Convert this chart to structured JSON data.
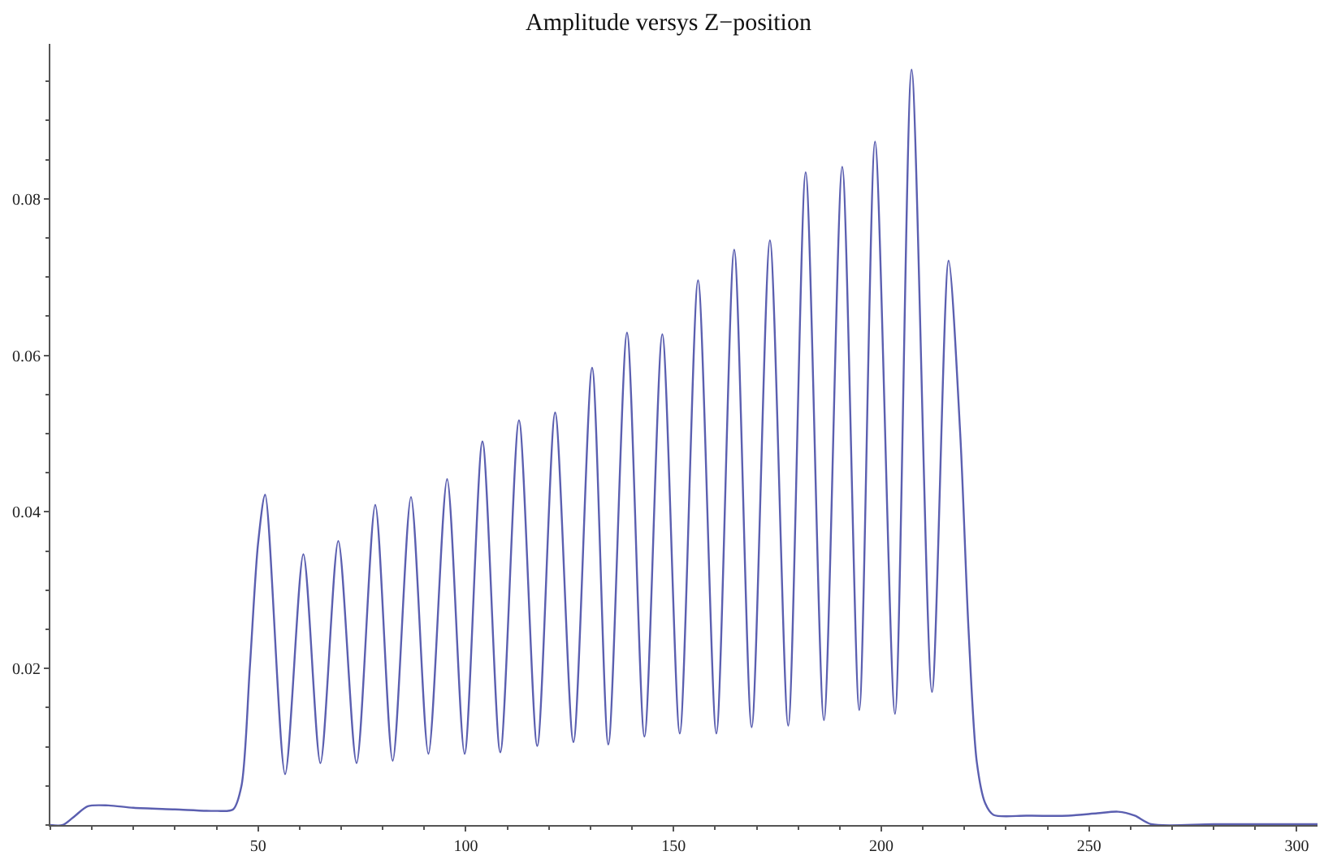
{
  "chart_data": {
    "type": "line",
    "title": "Amplitude versys Z−position",
    "x": [
      0,
      3,
      6,
      9,
      14,
      20,
      30,
      40,
      44,
      46,
      48,
      50,
      51.7,
      56.5,
      60.9,
      65,
      69.3,
      73.7,
      78.2,
      82.4,
      86.8,
      91,
      95.5,
      99.7,
      104,
      108.3,
      112.8,
      117.2,
      121.5,
      125.9,
      130.4,
      134.3,
      138.8,
      143,
      147.3,
      151.5,
      155.9,
      160.3,
      164.6,
      168.8,
      173.2,
      177.6,
      181.8,
      186.2,
      190.6,
      194.7,
      198.5,
      203.3,
      207.3,
      212.2,
      216.2,
      219,
      221,
      223,
      225,
      227,
      235,
      245,
      252,
      257,
      261,
      265,
      280,
      305
    ],
    "series": [
      {
        "color": "#5b5fb0",
        "values": [
          0,
          0,
          0.0012,
          0.0024,
          0.0025,
          0.0022,
          0.002,
          0.0018,
          0.002,
          0.005,
          0.02,
          0.036,
          0.0422,
          0.0065,
          0.0346,
          0.0079,
          0.0363,
          0.0079,
          0.0409,
          0.0082,
          0.0419,
          0.0091,
          0.0442,
          0.0091,
          0.049,
          0.0093,
          0.0517,
          0.0101,
          0.0527,
          0.0106,
          0.0584,
          0.0103,
          0.0629,
          0.0113,
          0.0627,
          0.0117,
          0.0696,
          0.0117,
          0.0735,
          0.0125,
          0.0747,
          0.0127,
          0.0834,
          0.0134,
          0.0841,
          0.0147,
          0.0873,
          0.0142,
          0.0965,
          0.017,
          0.0721,
          0.05,
          0.025,
          0.008,
          0.0028,
          0.0013,
          0.0012,
          0.0012,
          0.0015,
          0.0017,
          0.0012,
          0.0001,
          0.0001,
          0.0001
        ]
      }
    ],
    "xlim": [
      0,
      305
    ],
    "ylim": [
      0,
      0.0998
    ],
    "xticks": [
      50,
      100,
      150,
      200,
      250,
      300
    ],
    "yticks": [
      0.02,
      0.04,
      0.06,
      0.08
    ],
    "marker": "none",
    "line_style": "solid"
  }
}
